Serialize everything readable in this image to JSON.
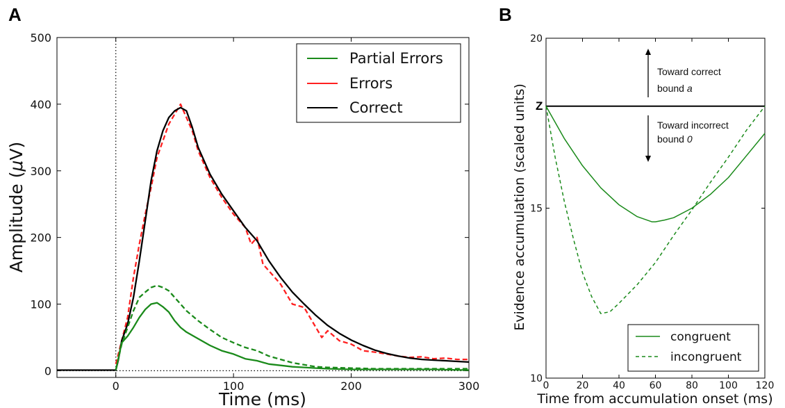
{
  "chart_data": [
    {
      "panel_label": "A",
      "type": "line",
      "xlabel": "Time (ms)",
      "ylabel_prefix": "Amplitude (",
      "ylabel_mu": "μ",
      "ylabel_suffix": "V)",
      "xlim": [
        -50,
        300
      ],
      "ylim": [
        -10,
        500
      ],
      "xticks": [
        0,
        100,
        200,
        300
      ],
      "yticks": [
        0,
        100,
        200,
        300,
        400,
        500
      ],
      "vline_x": 0,
      "hline_y": 0,
      "legend": [
        {
          "label": "Partial Errors",
          "color": "#1a8a1a",
          "dash": "solid"
        },
        {
          "label": "Errors",
          "color": "#ff2020",
          "dash": "solid"
        },
        {
          "label": "Correct",
          "color": "#000000",
          "dash": "solid"
        }
      ],
      "series": [
        {
          "name": "Correct",
          "color": "#000000",
          "dash": "solid",
          "x": [
            -50,
            0,
            2,
            5,
            10,
            15,
            20,
            25,
            30,
            35,
            40,
            45,
            50,
            55,
            60,
            65,
            70,
            80,
            90,
            100,
            110,
            120,
            130,
            140,
            150,
            160,
            170,
            180,
            190,
            200,
            210,
            220,
            230,
            240,
            250,
            260,
            270,
            280,
            290,
            300
          ],
          "y": [
            1,
            1,
            15,
            45,
            70,
            110,
            165,
            225,
            285,
            330,
            360,
            380,
            390,
            395,
            390,
            365,
            335,
            295,
            265,
            240,
            215,
            195,
            165,
            140,
            118,
            100,
            83,
            68,
            56,
            46,
            38,
            31,
            26,
            22,
            19,
            17,
            16,
            15,
            14,
            13
          ]
        },
        {
          "name": "Errors",
          "color": "#ff2020",
          "dash": "dashed",
          "x": [
            0,
            5,
            10,
            15,
            20,
            25,
            30,
            35,
            40,
            45,
            50,
            55,
            60,
            65,
            70,
            80,
            90,
            100,
            110,
            115,
            120,
            125,
            130,
            140,
            150,
            160,
            170,
            175,
            180,
            190,
            200,
            210,
            220,
            230,
            240,
            250,
            260,
            270,
            280,
            290,
            300
          ],
          "y": [
            10,
            45,
            80,
            140,
            190,
            235,
            275,
            320,
            345,
            370,
            385,
            400,
            380,
            360,
            330,
            290,
            260,
            235,
            215,
            190,
            200,
            160,
            150,
            130,
            100,
            95,
            65,
            50,
            60,
            45,
            40,
            30,
            28,
            25,
            22,
            20,
            21,
            18,
            19,
            17,
            17
          ]
        },
        {
          "name": "Partial Errors (incongruent)",
          "color": "#1a8a1a",
          "dash": "dashed",
          "x": [
            0,
            5,
            10,
            15,
            20,
            25,
            30,
            35,
            40,
            45,
            50,
            55,
            60,
            70,
            80,
            90,
            100,
            110,
            120,
            130,
            140,
            150,
            160,
            170,
            180,
            200,
            220,
            250,
            270,
            300
          ],
          "y": [
            1,
            40,
            65,
            90,
            110,
            118,
            125,
            128,
            125,
            120,
            110,
            100,
            90,
            75,
            62,
            50,
            42,
            35,
            30,
            22,
            17,
            12,
            9,
            6,
            5,
            4,
            3,
            3,
            3,
            3
          ]
        },
        {
          "name": "Partial Errors (congruent)",
          "color": "#1a8a1a",
          "dash": "solid",
          "x": [
            0,
            5,
            10,
            15,
            20,
            25,
            30,
            35,
            40,
            45,
            50,
            55,
            60,
            70,
            80,
            90,
            100,
            110,
            120,
            130,
            140,
            150,
            160,
            170,
            180,
            200,
            220,
            250,
            270,
            300
          ],
          "y": [
            1,
            42,
            52,
            65,
            80,
            92,
            100,
            102,
            96,
            88,
            75,
            65,
            58,
            48,
            38,
            30,
            25,
            18,
            15,
            10,
            8,
            6,
            5,
            4,
            3,
            2,
            2,
            2,
            2,
            1
          ]
        }
      ]
    },
    {
      "panel_label": "B",
      "type": "line",
      "xlabel": "Time from accumulation onset (ms)",
      "ylabel": "Evidence accumulation (scaled units)",
      "xlim": [
        0,
        120
      ],
      "ylim": [
        10,
        20
      ],
      "xticks": [
        0,
        20,
        40,
        60,
        80,
        100,
        120
      ],
      "yticks": [
        10,
        15,
        20
      ],
      "z_level": 18,
      "z_label": "Z",
      "annotation_up_line1": "Toward correct",
      "annotation_up_line2": "bound ",
      "annotation_up_italic": "a",
      "annotation_down_line1": "Toward incorrect",
      "annotation_down_line2": "bound ",
      "annotation_down_italic": "0",
      "legend": [
        {
          "label": "congruent",
          "color": "#1a8a1a",
          "dash": "solid"
        },
        {
          "label": "incongruent",
          "color": "#1a8a1a",
          "dash": "dashed"
        }
      ],
      "series": [
        {
          "name": "congruent",
          "color": "#1a8a1a",
          "dash": "solid",
          "x": [
            0,
            10,
            20,
            30,
            40,
            50,
            58,
            60,
            65,
            70,
            80,
            90,
            100,
            110,
            120
          ],
          "y": [
            18,
            17.05,
            16.25,
            15.6,
            15.1,
            14.75,
            14.6,
            14.6,
            14.65,
            14.72,
            15.0,
            15.4,
            15.9,
            16.55,
            17.2
          ]
        },
        {
          "name": "incongruent",
          "color": "#1a8a1a",
          "dash": "dashed",
          "x": [
            0,
            5,
            10,
            15,
            20,
            25,
            30,
            35,
            40,
            50,
            60,
            70,
            80,
            90,
            100,
            110,
            120
          ],
          "y": [
            18,
            16.5,
            15.2,
            14.1,
            13.1,
            12.4,
            11.9,
            11.95,
            12.2,
            12.75,
            13.4,
            14.2,
            14.95,
            15.75,
            16.5,
            17.3,
            18
          ]
        }
      ]
    }
  ]
}
